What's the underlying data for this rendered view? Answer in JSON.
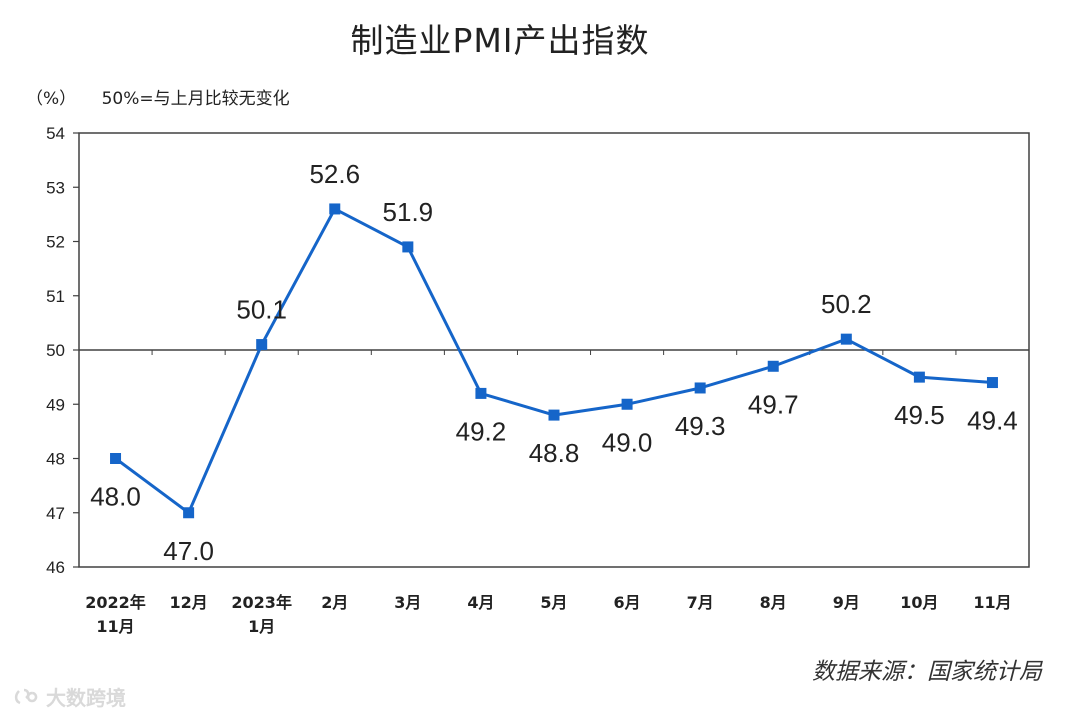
{
  "title": "制造业PMI产出指数",
  "note": {
    "unit": "（%）",
    "baseline_text": "50%=与上月比较无变化"
  },
  "source": "数据来源：国家统计局",
  "watermark": "大数跨境",
  "colors": {
    "line": "#1565c9",
    "frame": "#404040",
    "baseline": "#404040"
  },
  "chart_data": {
    "type": "line",
    "categories": [
      "2022年\n11月",
      "12月",
      "2023年\n1月",
      "2月",
      "3月",
      "4月",
      "5月",
      "6月",
      "7月",
      "8月",
      "9月",
      "10月",
      "11月"
    ],
    "series": [
      {
        "values": [
          48.0,
          47.0,
          50.1,
          52.6,
          51.9,
          49.2,
          48.8,
          49.0,
          49.3,
          49.7,
          50.2,
          49.5,
          49.4
        ]
      }
    ],
    "data_labels": [
      "48.0",
      "47.0",
      "50.1",
      "52.6",
      "51.9",
      "49.2",
      "48.8",
      "49.0",
      "49.3",
      "49.7",
      "50.2",
      "49.5",
      "49.4"
    ],
    "label_position": [
      "below",
      "below",
      "above",
      "above",
      "above",
      "below",
      "below",
      "below",
      "below",
      "below",
      "above",
      "below",
      "below"
    ],
    "ylim": [
      46,
      54
    ],
    "yticks": [
      46,
      47,
      48,
      49,
      50,
      51,
      52,
      53,
      54
    ],
    "reference_line": 50,
    "grid": false,
    "xlabel": "",
    "ylabel": "（%）"
  }
}
